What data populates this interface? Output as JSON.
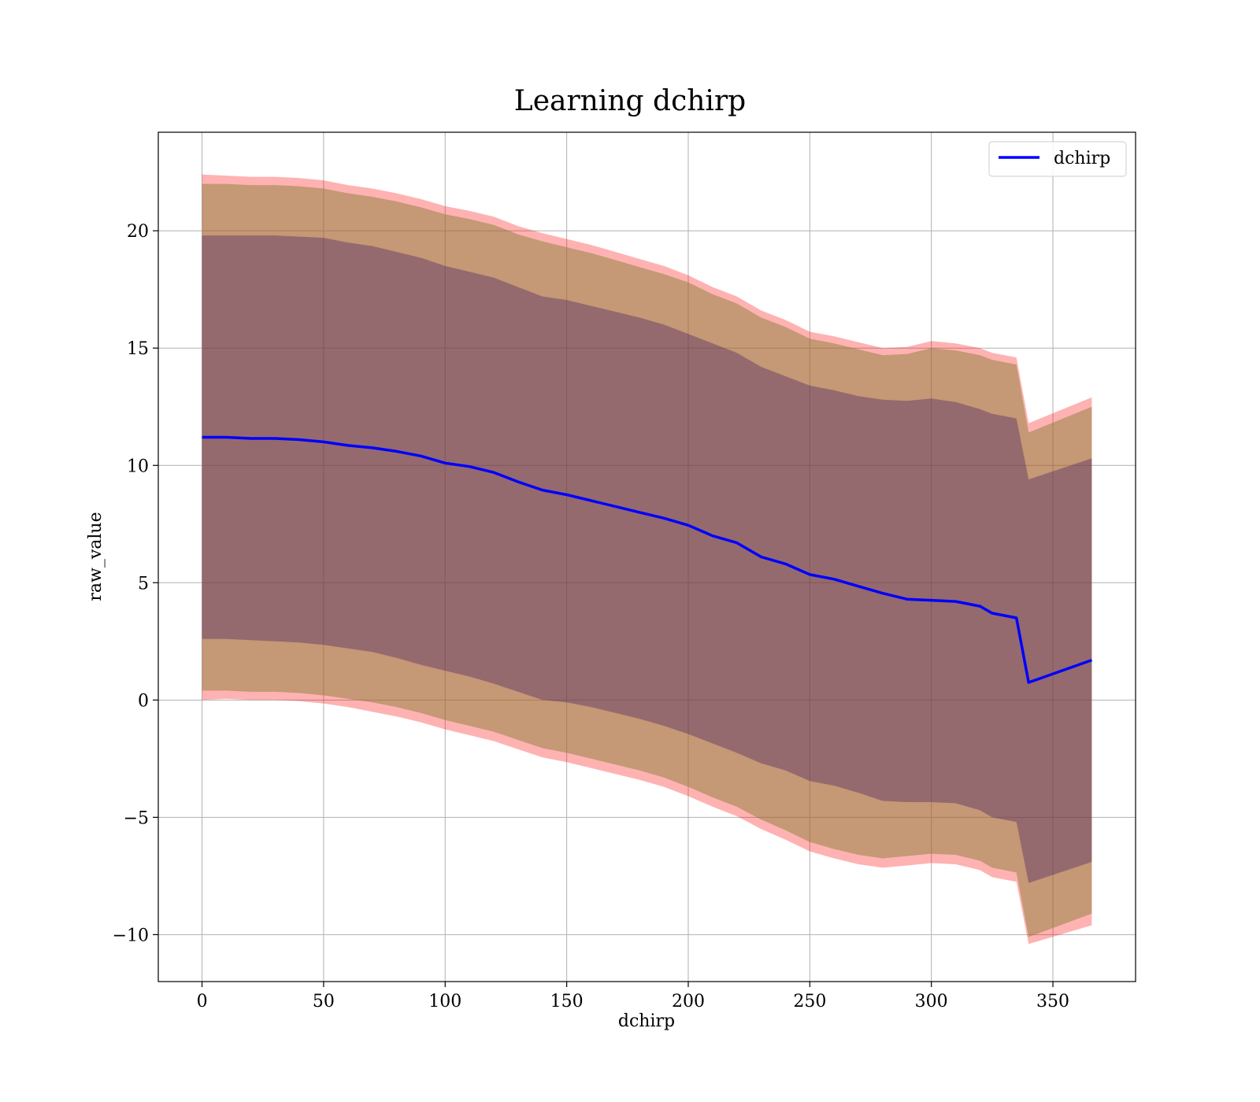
{
  "chart_data": {
    "type": "line",
    "title": "Learning dchirp",
    "xlabel": "dchirp",
    "ylabel": "raw_value",
    "xlim": [
      -18,
      384
    ],
    "ylim": [
      -12,
      24.2
    ],
    "xticks": [
      0,
      50,
      100,
      150,
      200,
      250,
      300,
      350
    ],
    "yticks": [
      -10,
      -5,
      0,
      5,
      10,
      15,
      20
    ],
    "xtick_labels": [
      "0",
      "50",
      "100",
      "150",
      "200",
      "250",
      "300",
      "350"
    ],
    "ytick_labels": [
      "−10",
      "−5",
      "0",
      "5",
      "10",
      "15",
      "20"
    ],
    "grid": true,
    "legend_position": "top-right",
    "x": [
      0,
      10,
      20,
      30,
      40,
      50,
      60,
      70,
      80,
      90,
      100,
      110,
      120,
      130,
      140,
      150,
      160,
      170,
      180,
      190,
      200,
      210,
      220,
      230,
      240,
      250,
      260,
      270,
      280,
      290,
      300,
      310,
      320,
      325,
      335,
      340,
      366
    ],
    "series": [
      {
        "name": "dchirp",
        "color": "#0000ff",
        "values": [
          11.2,
          11.2,
          11.15,
          11.15,
          11.1,
          11.0,
          10.85,
          10.75,
          10.6,
          10.4,
          10.1,
          9.95,
          9.7,
          9.3,
          8.95,
          8.75,
          8.5,
          8.25,
          8.0,
          7.75,
          7.45,
          7.0,
          6.7,
          6.1,
          5.8,
          5.35,
          5.15,
          4.85,
          4.55,
          4.3,
          4.25,
          4.2,
          4.0,
          3.7,
          3.5,
          0.75,
          1.7
        ]
      }
    ],
    "bands": [
      {
        "fill": "#ff0000",
        "opacity": 0.3,
        "upper": [
          22.4,
          22.35,
          22.3,
          22.3,
          22.25,
          22.15,
          21.95,
          21.8,
          21.6,
          21.35,
          21.05,
          20.85,
          20.6,
          20.2,
          19.9,
          19.65,
          19.4,
          19.1,
          18.8,
          18.5,
          18.1,
          17.6,
          17.2,
          16.6,
          16.2,
          15.7,
          15.5,
          15.25,
          15.0,
          15.05,
          15.3,
          15.2,
          15.0,
          14.8,
          14.6,
          11.8,
          12.9
        ],
        "lower": [
          0.0,
          0.05,
          0.0,
          0.0,
          -0.05,
          -0.15,
          -0.3,
          -0.5,
          -0.7,
          -0.95,
          -1.25,
          -1.5,
          -1.75,
          -2.1,
          -2.45,
          -2.65,
          -2.9,
          -3.15,
          -3.4,
          -3.7,
          -4.1,
          -4.55,
          -4.95,
          -5.5,
          -5.95,
          -6.45,
          -6.75,
          -7.0,
          -7.15,
          -7.05,
          -6.95,
          -7.0,
          -7.25,
          -7.55,
          -7.75,
          -10.4,
          -9.6
        ]
      },
      {
        "fill": "#8b7d3a",
        "opacity": 0.5,
        "upper": [
          22.0,
          22.0,
          21.95,
          21.95,
          21.9,
          21.8,
          21.6,
          21.45,
          21.25,
          21.0,
          20.7,
          20.5,
          20.25,
          19.85,
          19.55,
          19.3,
          19.05,
          18.75,
          18.45,
          18.15,
          17.8,
          17.3,
          16.9,
          16.3,
          15.9,
          15.4,
          15.2,
          14.95,
          14.7,
          14.75,
          15.0,
          14.9,
          14.7,
          14.5,
          14.3,
          11.4,
          12.5
        ],
        "lower": [
          0.4,
          0.4,
          0.35,
          0.35,
          0.3,
          0.2,
          0.05,
          -0.1,
          -0.3,
          -0.55,
          -0.85,
          -1.1,
          -1.35,
          -1.7,
          -2.05,
          -2.25,
          -2.5,
          -2.75,
          -3.0,
          -3.3,
          -3.7,
          -4.15,
          -4.55,
          -5.1,
          -5.55,
          -6.05,
          -6.35,
          -6.6,
          -6.75,
          -6.65,
          -6.55,
          -6.6,
          -6.85,
          -7.15,
          -7.35,
          -10.1,
          -9.1
        ]
      },
      {
        "fill": "#3a1560",
        "opacity": 0.35,
        "upper": [
          19.8,
          19.8,
          19.8,
          19.8,
          19.75,
          19.7,
          19.5,
          19.35,
          19.1,
          18.85,
          18.5,
          18.25,
          18.0,
          17.6,
          17.2,
          17.05,
          16.8,
          16.55,
          16.3,
          16.0,
          15.6,
          15.2,
          14.8,
          14.2,
          13.8,
          13.4,
          13.2,
          12.95,
          12.8,
          12.75,
          12.85,
          12.7,
          12.4,
          12.2,
          12.0,
          9.4,
          10.3
        ],
        "lower": [
          2.6,
          2.6,
          2.55,
          2.5,
          2.45,
          2.35,
          2.2,
          2.05,
          1.8,
          1.5,
          1.25,
          1.0,
          0.7,
          0.35,
          0.0,
          -0.1,
          -0.3,
          -0.55,
          -0.8,
          -1.1,
          -1.45,
          -1.85,
          -2.25,
          -2.7,
          -3.0,
          -3.45,
          -3.65,
          -3.95,
          -4.3,
          -4.35,
          -4.35,
          -4.4,
          -4.7,
          -5.0,
          -5.2,
          -7.8,
          -6.9
        ]
      }
    ]
  }
}
